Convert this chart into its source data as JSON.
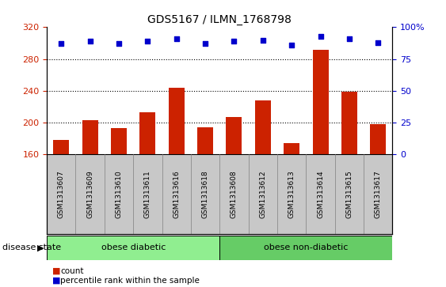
{
  "title": "GDS5167 / ILMN_1768798",
  "samples": [
    "GSM1313607",
    "GSM1313609",
    "GSM1313610",
    "GSM1313611",
    "GSM1313616",
    "GSM1313618",
    "GSM1313608",
    "GSM1313612",
    "GSM1313613",
    "GSM1313614",
    "GSM1313615",
    "GSM1313617"
  ],
  "counts": [
    178,
    203,
    193,
    213,
    244,
    194,
    207,
    228,
    174,
    292,
    239,
    198
  ],
  "percentile_ranks": [
    87,
    89,
    87,
    89,
    91,
    87,
    89,
    90,
    86,
    93,
    91,
    88
  ],
  "groups_info": [
    {
      "label": "obese diabetic",
      "start": 0,
      "end": 5,
      "color": "#90EE90"
    },
    {
      "label": "obese non-diabetic",
      "start": 6,
      "end": 11,
      "color": "#66CC66"
    }
  ],
  "bar_color": "#CC2200",
  "dot_color": "#0000CC",
  "ylim_left": [
    160,
    320
  ],
  "ylim_right": [
    0,
    100
  ],
  "yticks_left": [
    160,
    200,
    240,
    280,
    320
  ],
  "yticks_right": [
    0,
    25,
    50,
    75,
    100
  ],
  "grid_values": [
    200,
    240,
    280
  ],
  "left_axis_color": "#CC2200",
  "right_axis_color": "#0000CC",
  "label_bg_color": "#C8C8C8",
  "plot_bg_color": "#FFFFFF"
}
